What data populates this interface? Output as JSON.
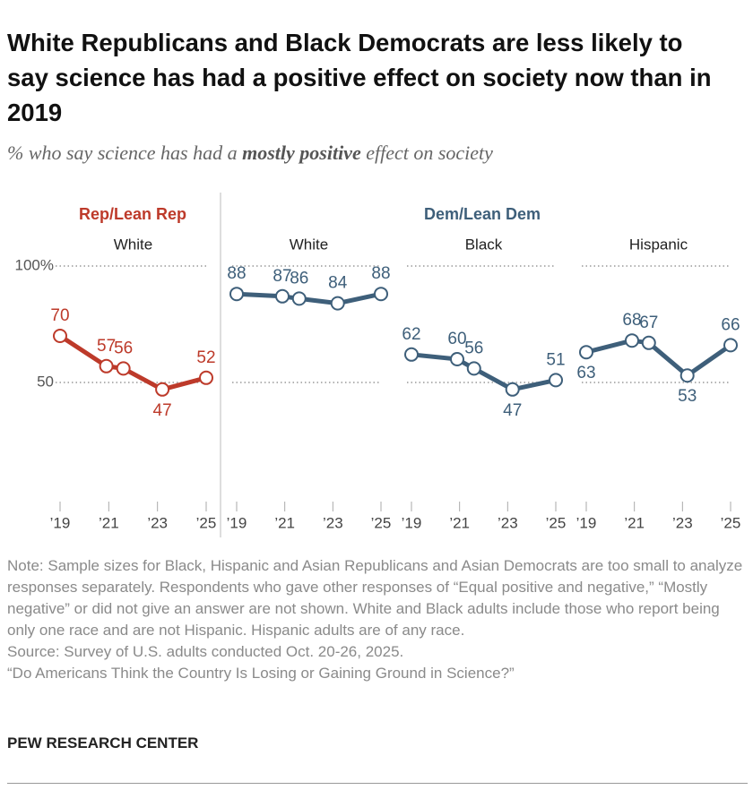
{
  "header": {
    "title": "White Republicans and Black Democrats are less likely to say science has had a positive effect on society now than in 2019",
    "subtitle": [
      "% who say science has had a ",
      "mostly positive",
      " effect on society"
    ]
  },
  "groups": [
    {
      "label": "Rep/Lean Rep",
      "color": "#bd3a2a"
    },
    {
      "label": "Dem/Lean Dem",
      "color": "#3e5f7a"
    }
  ],
  "chart_data": [
    {
      "type": "line",
      "title": "White",
      "x": [
        2019,
        2020.9,
        2021.6,
        2023.2,
        2025
      ],
      "series": [
        {
          "color": "#bd3a2a",
          "values": [
            70,
            57,
            56,
            47,
            52
          ]
        }
      ],
      "xlim": [
        2019,
        2025
      ],
      "xticks": [
        {
          "value": 2019,
          "label": "’19"
        },
        {
          "value": 2021,
          "label": "’21"
        },
        {
          "value": 2023,
          "label": "’23"
        },
        {
          "value": 2025,
          "label": "’25"
        }
      ],
      "ylim": [
        0,
        100
      ],
      "yticks": [
        50,
        {
          "value": 100,
          "label": "100%"
        }
      ],
      "grid": true
    },
    {
      "type": "line",
      "title": "White",
      "x": [
        2019,
        2020.9,
        2021.6,
        2023.2,
        2025
      ],
      "series": [
        {
          "color": "#3e5f7a",
          "values": [
            88,
            87,
            86,
            84,
            88
          ]
        }
      ],
      "xlim": [
        2019,
        2025
      ],
      "xticks": [
        {
          "value": 2019,
          "label": "’19"
        },
        {
          "value": 2021,
          "label": "’21"
        },
        {
          "value": 2023,
          "label": "’23"
        },
        {
          "value": 2025,
          "label": "’25"
        }
      ],
      "ylim": [
        0,
        100
      ],
      "yticks": [
        50,
        {
          "value": 100,
          "label": "100%"
        }
      ],
      "grid": true
    },
    {
      "type": "line",
      "title": "Black",
      "x": [
        2019,
        2020.9,
        2021.6,
        2023.2,
        2025
      ],
      "series": [
        {
          "color": "#3e5f7a",
          "values": [
            62,
            60,
            56,
            47,
            51
          ]
        }
      ],
      "xlim": [
        2019,
        2025
      ],
      "xticks": [
        {
          "value": 2019,
          "label": "’19"
        },
        {
          "value": 2021,
          "label": "’21"
        },
        {
          "value": 2023,
          "label": "’23"
        },
        {
          "value": 2025,
          "label": "’25"
        }
      ],
      "ylim": [
        0,
        100
      ],
      "yticks": [
        50,
        {
          "value": 100,
          "label": "100%"
        }
      ],
      "grid": true
    },
    {
      "type": "line",
      "title": "Hispanic",
      "x": [
        2019,
        2020.9,
        2021.6,
        2023.2,
        2025
      ],
      "series": [
        {
          "color": "#3e5f7a",
          "values": [
            63,
            68,
            67,
            53,
            66
          ]
        }
      ],
      "xlim": [
        2019,
        2025
      ],
      "xticks": [
        {
          "value": 2019,
          "label": "’19"
        },
        {
          "value": 2021,
          "label": "’21"
        },
        {
          "value": 2023,
          "label": "’23"
        },
        {
          "value": 2025,
          "label": "’25"
        }
      ],
      "ylim": [
        0,
        100
      ],
      "yticks": [
        50,
        {
          "value": 100,
          "label": "100%"
        }
      ],
      "grid": true
    }
  ],
  "notes": {
    "note": "Note: Sample sizes for Black, Hispanic and Asian Republicans and Asian Democrats are too small to analyze responses separately. Respondents who gave other responses of “Equal positive and negative,” “Mostly negative” or did not give an answer are not shown. White and Black adults include those who report being only one race and are not Hispanic. Hispanic adults are of any race.",
    "source": "Source: Survey of U.S. adults conducted Oct. 20-26, 2025.",
    "report": "“Do Americans Think the Country Is Losing or Gaining Ground in Science?”"
  },
  "footer": "PEW RESEARCH CENTER"
}
